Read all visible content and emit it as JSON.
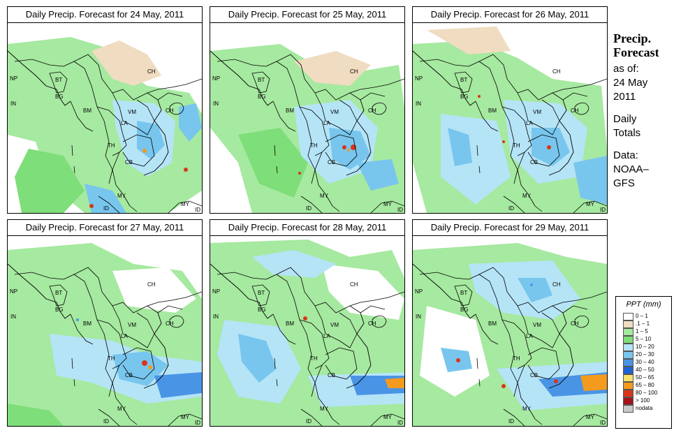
{
  "panels": [
    {
      "title": "Daily Precip. Forecast for  24 May, 2011"
    },
    {
      "title": "Daily Precip. Forecast for  25 May, 2011"
    },
    {
      "title": "Daily Precip. Forecast for  26 May, 2011"
    },
    {
      "title": "Daily Precip. Forecast for  27 May, 2011"
    },
    {
      "title": "Daily Precip. Forecast for  28 May, 2011"
    },
    {
      "title": "Daily Precip. Forecast for  29 May, 2011"
    }
  ],
  "country_labels": {
    "china": "CH",
    "nepal": "NP",
    "bhutan": "BT",
    "india": "IN",
    "bangladesh": "BG",
    "burma": "BM",
    "vietnam": "VM",
    "laos": "LA",
    "thailand": "TH",
    "cambodia": "CB",
    "china_island": "CH",
    "malaysia": "MY",
    "indonesia": "ID"
  },
  "sidebar": {
    "title_line1": "Precip.",
    "title_line2": "Forecast",
    "asof": "as of:",
    "date_line1": "24 May",
    "date_line2": "2011",
    "totals_line1": "Daily",
    "totals_line2": "Totals",
    "data_line1": "Data:",
    "data_line2": "NOAA–",
    "data_line3": "GFS"
  },
  "legend": {
    "title": "PPT (mm)",
    "items": [
      {
        "label": "0 – 1",
        "color": "#ffffff"
      },
      {
        "label": ".1 – 1",
        "color": "#f0dcc0"
      },
      {
        "label": "1 – 5",
        "color": "#a6e9a0"
      },
      {
        "label": "5 – 10",
        "color": "#7ede79"
      },
      {
        "label": "10 – 20",
        "color": "#b5e4f7"
      },
      {
        "label": "20 – 30",
        "color": "#78c6ee"
      },
      {
        "label": "30 – 40",
        "color": "#4a94e6"
      },
      {
        "label": "40 – 50",
        "color": "#1f63d6"
      },
      {
        "label": "50 – 65",
        "color": "#f5e36b"
      },
      {
        "label": "65 – 80",
        "color": "#f39a1f"
      },
      {
        "label": "80 – 100",
        "color": "#d9351a"
      },
      {
        "label": "> 100",
        "color": "#a4131b"
      },
      {
        "label": "nodata",
        "color": "#c8c8c8"
      }
    ]
  },
  "colors": {
    "light_tan": "#f0dcc0",
    "light_green": "#a6e9a0",
    "green": "#7ede79",
    "light_blue": "#b5e4f7",
    "blue": "#78c6ee",
    "mid_blue": "#4a94e6",
    "dark_blue": "#1f63d6",
    "orange": "#f39a1f",
    "red": "#d9351a"
  }
}
